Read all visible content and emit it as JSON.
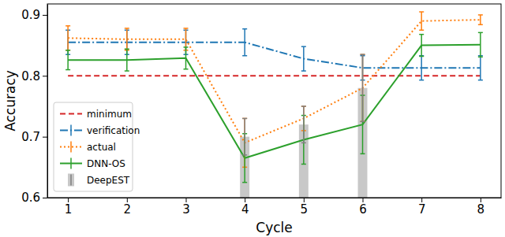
{
  "chart_data": {
    "type": "line",
    "x_label": "Cycle",
    "y_label": "Accuracy",
    "x": [
      1,
      2,
      3,
      4,
      5,
      6,
      7,
      8
    ],
    "xlim": [
      0.65,
      8.35
    ],
    "xticks": [
      1,
      2,
      3,
      4,
      5,
      6,
      7,
      8
    ],
    "ylim": [
      0.6,
      0.918
    ],
    "yticks": [
      0.6,
      0.7,
      0.8,
      0.9
    ],
    "grid": false,
    "legend": "lower left",
    "series": [
      {
        "name": "minimum",
        "type": "line",
        "color": "#d62728",
        "line_style": "dashed",
        "values": [
          0.8,
          0.8,
          0.8,
          0.8,
          0.8,
          0.8,
          0.8,
          0.8
        ]
      },
      {
        "name": "verification",
        "type": "line",
        "color": "#1f77b4",
        "line_style": "dashdot",
        "values": [
          0.855,
          0.855,
          0.855,
          0.855,
          0.828,
          0.813,
          0.813,
          0.813
        ],
        "errors": [
          0.02,
          0.02,
          0.02,
          0.022,
          0.02,
          0.02,
          0.02,
          0.02
        ]
      },
      {
        "name": "actual",
        "type": "line",
        "color": "#ff7f0e",
        "line_style": "dotted",
        "values": [
          0.862,
          0.86,
          0.86,
          0.69,
          0.73,
          0.78,
          0.89,
          0.892
        ],
        "errors": [
          0.02,
          0.018,
          0.018,
          0.04,
          0.02,
          0.055,
          0.015,
          0.008
        ]
      },
      {
        "name": "DNN-OS",
        "type": "line",
        "color": "#2ca02c",
        "line_style": "solid",
        "values": [
          0.826,
          0.826,
          0.829,
          0.665,
          0.695,
          0.72,
          0.85,
          0.851
        ],
        "errors": [
          0.016,
          0.018,
          0.018,
          0.04,
          0.04,
          0.048,
          0.018,
          0.02
        ]
      },
      {
        "name": "DeepEST",
        "type": "bar",
        "color": "#c8c8c8",
        "values": [
          null,
          null,
          null,
          0.7,
          0.72,
          0.78,
          null,
          null
        ],
        "errors": [
          null,
          null,
          null,
          0.03,
          0.03,
          0.055,
          null,
          null
        ]
      }
    ]
  }
}
